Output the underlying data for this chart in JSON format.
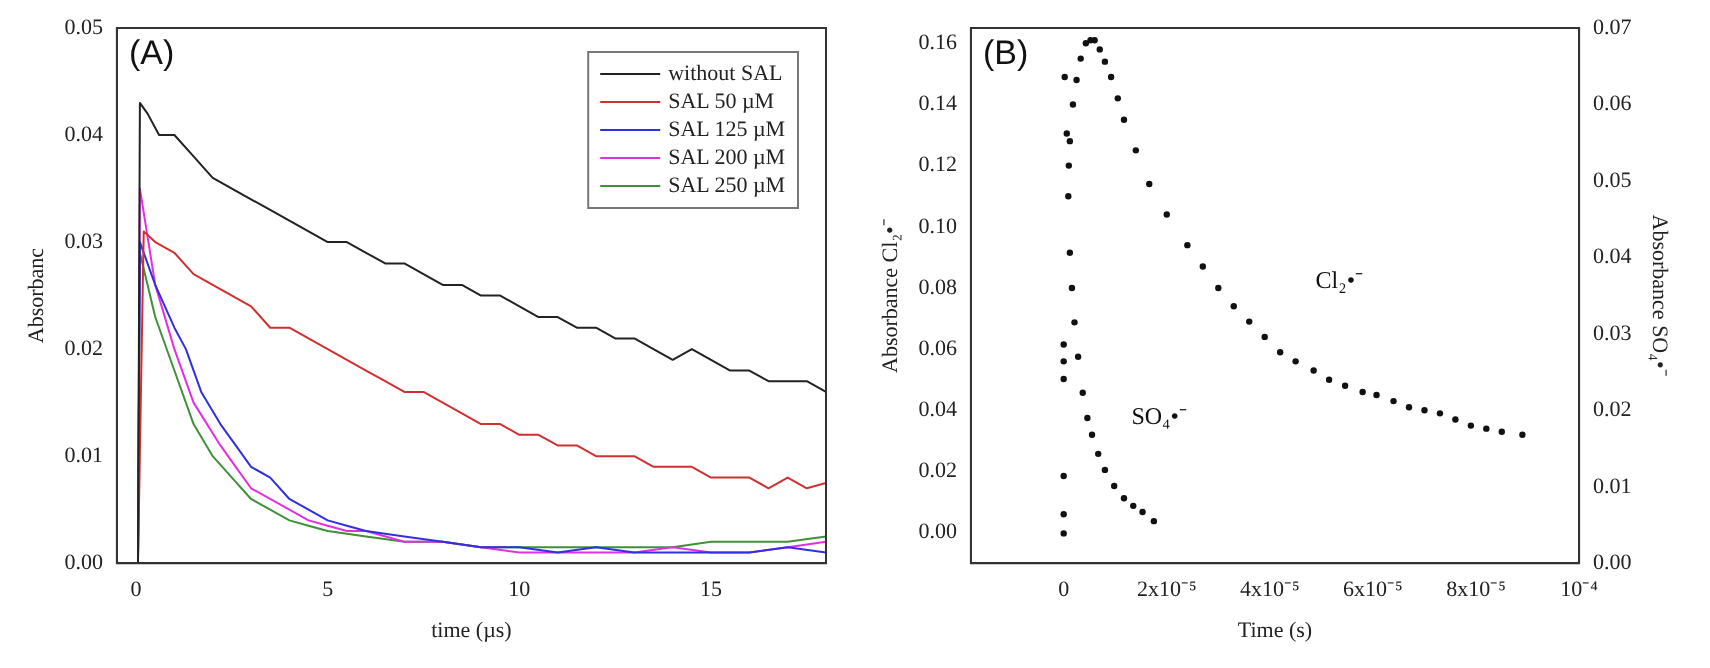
{
  "chart_data": [
    {
      "type": "line",
      "xlabel": "time (µs)",
      "ylabel": "Absorbanc",
      "xlim": [
        -0.5,
        18
      ],
      "xticks": [
        0,
        5,
        10,
        15
      ],
      "ylim": [
        0,
        0.05
      ],
      "yticks": [
        {
          "value": 0,
          "label": "0.00"
        },
        {
          "value": 0.01,
          "label": "0.01"
        },
        {
          "value": 0.02,
          "label": "0.02"
        },
        {
          "value": 0.03,
          "label": "0.03"
        },
        {
          "value": 0.04,
          "label": "0.04"
        },
        {
          "value": 0.05,
          "label": "0.05"
        }
      ],
      "legend": "top right",
      "marker": "none",
      "annotations": [
        "(A)"
      ],
      "series": [
        {
          "name": "without SAL",
          "color": "#222222",
          "x": [
            0.05,
            0.1,
            0.3,
            0.6,
            1,
            1.5,
            2,
            2.5,
            3,
            3.5,
            4,
            4.5,
            5,
            5.5,
            6,
            6.5,
            7,
            7.5,
            8,
            8.5,
            9,
            9.5,
            10,
            10.5,
            11,
            11.5,
            12,
            12.5,
            13,
            13.5,
            14,
            14.5,
            15,
            15.5,
            16,
            16.5,
            17,
            17.5,
            18
          ],
          "values": [
            0,
            0.043,
            0.042,
            0.04,
            0.04,
            0.038,
            0.036,
            0.035,
            0.034,
            0.033,
            0.032,
            0.031,
            0.03,
            0.03,
            0.029,
            0.028,
            0.028,
            0.027,
            0.026,
            0.026,
            0.025,
            0.025,
            0.024,
            0.023,
            0.023,
            0.022,
            0.022,
            0.021,
            0.021,
            0.02,
            0.019,
            0.02,
            0.019,
            0.018,
            0.018,
            0.017,
            0.017,
            0.017,
            0.016
          ]
        },
        {
          "name": "SAL 50 µM",
          "color": "#d03030",
          "x": [
            0.05,
            0.2,
            0.5,
            1,
            1.5,
            2,
            2.5,
            3,
            3.5,
            4,
            4.5,
            5,
            5.5,
            6,
            6.5,
            7,
            7.5,
            8,
            8.5,
            9,
            9.5,
            10,
            10.5,
            11,
            11.5,
            12,
            12.5,
            13,
            13.5,
            14,
            14.5,
            15,
            15.5,
            16,
            16.5,
            17,
            17.5,
            18
          ],
          "values": [
            0,
            0.031,
            0.03,
            0.029,
            0.027,
            0.026,
            0.025,
            0.024,
            0.022,
            0.022,
            0.021,
            0.02,
            0.019,
            0.018,
            0.017,
            0.016,
            0.016,
            0.015,
            0.014,
            0.013,
            0.013,
            0.012,
            0.012,
            0.011,
            0.011,
            0.01,
            0.01,
            0.01,
            0.009,
            0.009,
            0.009,
            0.008,
            0.008,
            0.008,
            0.007,
            0.008,
            0.007,
            0.0075
          ]
        },
        {
          "name": "SAL 125 µM",
          "color": "#3030e0",
          "x": [
            0.05,
            0.1,
            0.5,
            1,
            1.3,
            1.7,
            2.2,
            2.6,
            3,
            3.5,
            4,
            4.5,
            5,
            5.5,
            6,
            7,
            8,
            9,
            10,
            11,
            12,
            13,
            14,
            15,
            16,
            17,
            18
          ],
          "values": [
            0,
            0.03,
            0.026,
            0.022,
            0.02,
            0.016,
            0.013,
            0.011,
            0.009,
            0.008,
            0.006,
            0.005,
            0.004,
            0.0035,
            0.003,
            0.0025,
            0.002,
            0.0015,
            0.0015,
            0.001,
            0.0015,
            0.001,
            0.001,
            0.001,
            0.001,
            0.0015,
            0.001
          ]
        },
        {
          "name": "SAL 200 µM",
          "color": "#e030e0",
          "x": [
            0.05,
            0.1,
            0.5,
            1,
            1.5,
            2.2,
            2.6,
            3,
            3.5,
            4,
            4.5,
            5,
            5.5,
            6,
            7,
            8,
            9,
            10,
            11,
            12,
            13,
            14,
            15,
            16,
            17,
            18
          ],
          "values": [
            0,
            0.035,
            0.026,
            0.02,
            0.015,
            0.011,
            0.009,
            0.007,
            0.006,
            0.005,
            0.004,
            0.0035,
            0.003,
            0.003,
            0.002,
            0.002,
            0.0015,
            0.001,
            0.001,
            0.001,
            0.001,
            0.0015,
            0.001,
            0.001,
            0.0015,
            0.002
          ]
        },
        {
          "name": "SAL 250 µM",
          "color": "#40903a",
          "x": [
            0.05,
            0.1,
            0.5,
            1,
            1.5,
            2,
            2.5,
            3,
            3.5,
            4,
            4.5,
            5,
            6,
            7,
            8,
            9,
            10,
            11,
            12,
            13,
            14,
            15,
            16,
            17,
            18
          ],
          "values": [
            0,
            0.029,
            0.023,
            0.018,
            0.013,
            0.01,
            0.008,
            0.006,
            0.005,
            0.004,
            0.0035,
            0.003,
            0.0025,
            0.002,
            0.002,
            0.0015,
            0.0015,
            0.0015,
            0.0015,
            0.0015,
            0.0015,
            0.002,
            0.002,
            0.002,
            0.0025
          ]
        }
      ]
    },
    {
      "type": "scatter",
      "xlabel": "Time (s)",
      "ylabel": "Absorbance Cl₂•⁻",
      "y2label": "Absorbance SO₄•⁻",
      "xlim": [
        -1.8e-05,
        0.0001
      ],
      "xticks": [
        0,
        {
          "value": 2e-05,
          "label": "2x10⁻⁵"
        },
        {
          "value": 4e-05,
          "label": "4x10⁻⁵"
        },
        {
          "value": 6e-05,
          "label": "6x10⁻⁵"
        },
        {
          "value": 8e-05,
          "label": "8x10⁻⁵"
        },
        {
          "value": 0.0001,
          "label": "10⁻⁴"
        }
      ],
      "ylim": [
        -0.01,
        0.165
      ],
      "yticks": [
        {
          "value": 0,
          "label": "0.00"
        },
        {
          "value": 0.02,
          "label": "0.02"
        },
        {
          "value": 0.04,
          "label": "0.04"
        },
        {
          "value": 0.06,
          "label": "0.06"
        },
        {
          "value": 0.08,
          "label": "0.08"
        },
        {
          "value": 0.1,
          "label": "0.10"
        },
        {
          "value": 0.12,
          "label": "0.12"
        },
        {
          "value": 0.14,
          "label": "0.14"
        },
        {
          "value": 0.16,
          "label": "0.16"
        }
      ],
      "y2lim": [
        0,
        0.07
      ],
      "y2ticks": [
        {
          "value": 0,
          "label": "0.00"
        },
        {
          "value": 0.01,
          "label": "0.01"
        },
        {
          "value": 0.02,
          "label": "0.02"
        },
        {
          "value": 0.03,
          "label": "0.03"
        },
        {
          "value": 0.04,
          "label": "0.04"
        },
        {
          "value": 0.05,
          "label": "0.05"
        },
        {
          "value": 0.06,
          "label": "0.06"
        },
        {
          "value": 0.07,
          "label": "0.07"
        }
      ],
      "legend": false,
      "marker": "circle",
      "annotations": [
        "(B)"
      ],
      "series": [
        {
          "name": "Cl₂•⁻",
          "color": "#111111",
          "x": [
            1e-06,
            1.2e-06,
            1.8e-06,
            2.5e-06,
            3.3e-06,
            4.3e-06,
            5.2e-06,
            6e-06,
            7e-06,
            8e-06,
            9.2e-06,
            1.05e-05,
            1.17e-05,
            1.4e-05,
            1.66e-05,
            2e-05,
            2.4e-05,
            2.7e-05,
            3e-05,
            3.3e-05,
            3.6e-05,
            3.9e-05,
            4.2e-05,
            4.5e-05,
            4.85e-05,
            5.15e-05,
            5.46e-05,
            5.8e-05,
            6.07e-05,
            6.4e-05,
            6.7e-05,
            7e-05,
            7.3e-05,
            7.6e-05,
            7.9e-05,
            8.2e-05,
            8.5e-05,
            8.9e-05
          ],
          "values": [
            0.12,
            0.128,
            0.14,
            0.148,
            0.155,
            0.16,
            0.161,
            0.161,
            0.158,
            0.154,
            0.149,
            0.142,
            0.135,
            0.125,
            0.114,
            0.104,
            0.094,
            0.087,
            0.08,
            0.074,
            0.069,
            0.064,
            0.059,
            0.056,
            0.053,
            0.05,
            0.048,
            0.046,
            0.045,
            0.043,
            0.041,
            0.04,
            0.039,
            0.037,
            0.035,
            0.034,
            0.033,
            0.032
          ]
        },
        {
          "name": "SO₄•⁻",
          "axis": "y2",
          "color": "#111111",
          "x": [
            0,
            0,
            0,
            0,
            0,
            0,
            2e-07,
            6e-07,
            9e-07,
            1.2e-06,
            1.6e-06,
            2.1e-06,
            2.8e-06,
            3.7e-06,
            4.6e-06,
            5.5e-06,
            6.7e-06,
            8e-06,
            9.8e-06,
            1.17e-05,
            1.35e-05,
            1.53e-05,
            1.75e-05
          ],
          "values": [
            0.0039,
            0.0064,
            0.0114,
            0.0241,
            0.0264,
            0.0286,
            0.0636,
            0.0562,
            0.048,
            0.0406,
            0.036,
            0.0315,
            0.027,
            0.0223,
            0.019,
            0.0168,
            0.0143,
            0.0122,
            0.0101,
            0.0085,
            0.0075,
            0.0067,
            0.0055
          ]
        }
      ]
    }
  ]
}
